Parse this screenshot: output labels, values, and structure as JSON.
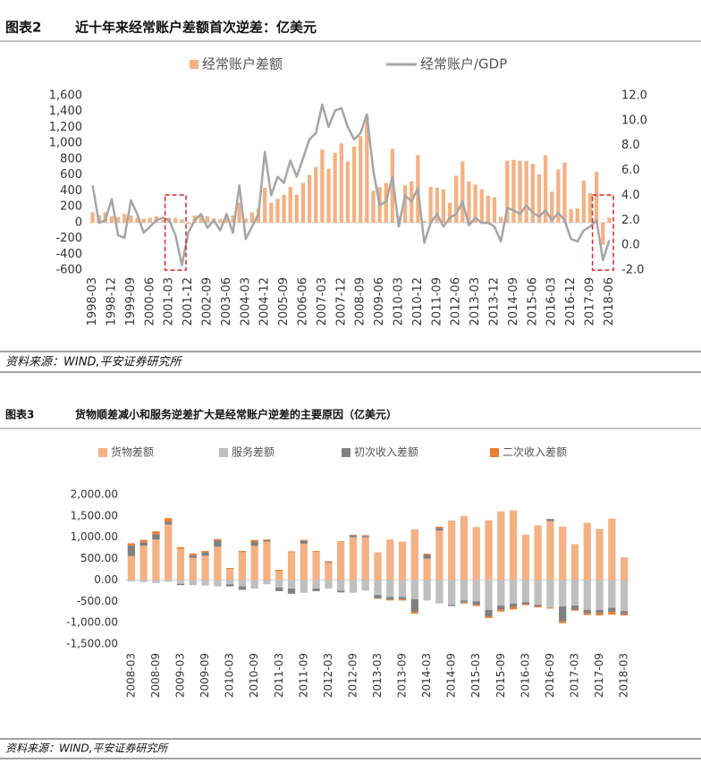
{
  "chart_data": [
    {
      "type": "combo",
      "label": "图表2",
      "title": "近十年来经常账户差额首次逆差：亿美元",
      "source": "资料来源：WIND,平安证券研究所",
      "categories": [
        "1998-03",
        null,
        null,
        "1998-12",
        null,
        null,
        "1999-09",
        null,
        null,
        "2000-06",
        null,
        null,
        "2001-03",
        null,
        null,
        "2001-12",
        null,
        null,
        "2002-09",
        null,
        null,
        "2003-06",
        null,
        null,
        "2004-03",
        null,
        null,
        "2004-12",
        null,
        null,
        "2005-09",
        null,
        null,
        "2006-06",
        null,
        null,
        "2007-03",
        null,
        null,
        "2007-12",
        null,
        null,
        "2008-09",
        null,
        null,
        "2009-06",
        null,
        null,
        "2010-03",
        null,
        null,
        "2010-12",
        null,
        null,
        "2011-09",
        null,
        null,
        "2012-06",
        null,
        null,
        "2013-03",
        null,
        null,
        "2013-12",
        null,
        null,
        "2014-09",
        null,
        null,
        "2015-06",
        null,
        null,
        "2016-03",
        null,
        null,
        "2016-12",
        null,
        null,
        "2017-09",
        null,
        null,
        "2018-06"
      ],
      "series": [
        {
          "name": "经常账户差额",
          "type": "bar",
          "color": "#f4b183",
          "values": [
            130,
            90,
            130,
            80,
            70,
            110,
            90,
            60,
            50,
            60,
            80,
            30,
            60,
            60,
            40,
            -20,
            90,
            100,
            80,
            50,
            40,
            80,
            90,
            250,
            50,
            130,
            180,
            440,
            250,
            300,
            350,
            450,
            350,
            500,
            600,
            700,
            920,
            680,
            880,
            1000,
            770,
            960,
            1090,
            1350,
            400,
            450,
            500,
            930,
            80,
            470,
            520,
            850,
            20,
            450,
            440,
            420,
            250,
            590,
            770,
            520,
            480,
            420,
            340,
            320,
            70,
            780,
            790,
            780,
            780,
            740,
            610,
            850,
            390,
            670,
            760,
            170,
            180,
            530,
            370,
            640,
            -280,
            60
          ]
        },
        {
          "name": "经常账户/GDP",
          "type": "line",
          "axis": "y2",
          "color": "#a5a5a5",
          "values": [
            4.8,
            1.8,
            2.0,
            3.7,
            0.8,
            0.6,
            3.6,
            2.5,
            1.0,
            1.5,
            2.0,
            2.2,
            2.0,
            0.8,
            -1.6,
            1.0,
            2.0,
            2.5,
            1.4,
            2.0,
            1.2,
            2.5,
            1.0,
            4.8,
            0.5,
            1.5,
            2.5,
            7.5,
            4.0,
            5.5,
            5.0,
            6.8,
            5.5,
            7.0,
            8.5,
            9.0,
            11.3,
            9.5,
            10.8,
            11.0,
            9.5,
            8.5,
            9.0,
            10.5,
            6.0,
            3.2,
            3.5,
            5.5,
            1.5,
            4.0,
            3.5,
            4.6,
            0.2,
            1.8,
            2.5,
            1.5,
            2.2,
            2.5,
            3.5,
            1.6,
            2.2,
            1.8,
            1.8,
            1.5,
            0.3,
            3.0,
            2.8,
            2.5,
            3.2,
            2.6,
            2.3,
            2.8,
            2.0,
            2.6,
            2.0,
            0.5,
            0.3,
            1.2,
            1.5,
            2.0,
            -1.2,
            0.4
          ]
        }
      ],
      "ylim": [
        -600,
        1600
      ],
      "yticks": [
        -600,
        -400,
        -200,
        0,
        200,
        400,
        600,
        800,
        {
          "value": 1000,
          "label": "1,000"
        },
        {
          "value": 1200,
          "label": "1,200"
        },
        {
          "value": 1400,
          "label": "1,400"
        },
        {
          "value": 1600,
          "label": "1,600"
        }
      ],
      "y2lim": [
        -2,
        12
      ],
      "y2ticks": [
        {
          "value": -2,
          "label": "-2.0"
        },
        {
          "value": 0,
          "label": "0.0"
        },
        {
          "value": 2,
          "label": "2.0"
        },
        {
          "value": 4,
          "label": "4.0"
        },
        {
          "value": 6,
          "label": "6.0"
        },
        {
          "value": 8,
          "label": "8.0"
        },
        {
          "value": 10,
          "label": "10.0"
        },
        {
          "value": 12,
          "label": "12.0"
        }
      ],
      "grid": false
    },
    {
      "type": "stacked_bar",
      "label": "图表3",
      "title": "货物顺差减小和服务逆差扩大是经常账户逆差的主要原因（亿美元）",
      "source": "资料来源：WIND,平安证券研究所",
      "categories": [
        "2008-03",
        null,
        "2008-09",
        null,
        "2009-03",
        null,
        "2009-09",
        null,
        "2010-03",
        null,
        "2010-09",
        null,
        "2011-03",
        null,
        "2011-09",
        null,
        "2012-03",
        null,
        "2012-09",
        null,
        "2013-03",
        null,
        "2013-09",
        null,
        "2014-03",
        null,
        "2014-09",
        null,
        "2015-03",
        null,
        "2015-09",
        null,
        "2016-03",
        null,
        "2016-09",
        null,
        "2017-03",
        null,
        "2017-09",
        null,
        "2018-03"
      ],
      "series": [
        {
          "name": "货物差额",
          "color": "#f4b183",
          "values": [
            560,
            800,
            950,
            1300,
            730,
            520,
            570,
            780,
            260,
            650,
            800,
            900,
            210,
            650,
            850,
            660,
            400,
            900,
            1000,
            1000,
            650,
            950,
            900,
            1190,
            500,
            1160,
            1380,
            1500,
            1240,
            1400,
            1610,
            1630,
            1060,
            1280,
            1380,
            1250,
            840,
            1340,
            1200,
            1440,
            530
          ]
        },
        {
          "name": "服务差额",
          "color": "#bfbfbf",
          "values": [
            -30,
            -50,
            -70,
            -40,
            -90,
            -120,
            -130,
            -150,
            -100,
            -150,
            -200,
            -100,
            -180,
            -200,
            -300,
            -200,
            -200,
            -250,
            -300,
            -250,
            -350,
            -400,
            -400,
            -450,
            -480,
            -550,
            -580,
            -480,
            -500,
            -700,
            -600,
            -550,
            -520,
            -580,
            -650,
            -620,
            -600,
            -700,
            -700,
            -650,
            -730
          ]
        },
        {
          "name": "初次收入差额",
          "color": "#808080",
          "values": [
            250,
            80,
            120,
            70,
            -30,
            60,
            80,
            150,
            -50,
            -80,
            100,
            30,
            -80,
            -120,
            60,
            -60,
            20,
            -40,
            50,
            30,
            -80,
            -60,
            -50,
            -300,
            100,
            60,
            -30,
            -50,
            -80,
            -150,
            -90,
            -80,
            -50,
            -30,
            50,
            -350,
            -100,
            -80,
            -80,
            -100,
            -60
          ]
        },
        {
          "name": "二次收入差额",
          "color": "#ed7d31",
          "values": [
            50,
            60,
            70,
            80,
            40,
            40,
            30,
            30,
            20,
            30,
            40,
            20,
            30,
            20,
            30,
            20,
            20,
            10,
            10,
            20,
            -10,
            -20,
            -30,
            -40,
            20,
            30,
            10,
            -20,
            -30,
            -40,
            -50,
            -60,
            -20,
            -30,
            -20,
            -40,
            -20,
            -40,
            -50,
            -60,
            -40
          ]
        }
      ],
      "ylim": [
        -1500,
        2000
      ],
      "yticks": [
        {
          "value": -1500,
          "label": "-1,500.00"
        },
        {
          "value": -1000,
          "label": "-1,000.00"
        },
        {
          "value": -500,
          "label": "-500.00"
        },
        {
          "value": 0,
          "label": "0.00"
        },
        {
          "value": 500,
          "label": "500.00"
        },
        {
          "value": 1000,
          "label": "1,000.00"
        },
        {
          "value": 1500,
          "label": "1,500.00"
        },
        {
          "value": 2000,
          "label": "2,000.00"
        }
      ],
      "grid": false
    }
  ]
}
